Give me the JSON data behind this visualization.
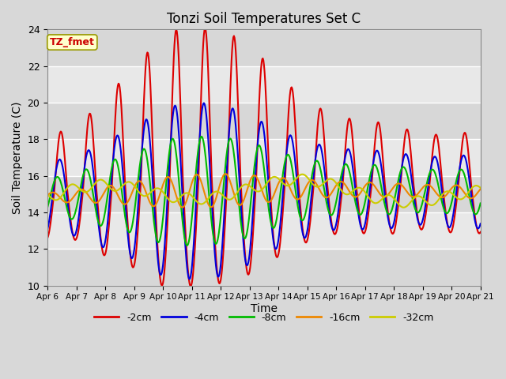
{
  "title": "Tonzi Soil Temperatures Set C",
  "xlabel": "Time",
  "ylabel": "Soil Temperature (C)",
  "ylim": [
    10,
    24
  ],
  "annotation": "TZ_fmet",
  "annotation_color": "#cc0000",
  "annotation_bg": "#ffffcc",
  "plot_bg": "#e8e8e8",
  "alt_band_color": "#d0d0d0",
  "grid_color": "#ffffff",
  "series": [
    {
      "label": "-2cm",
      "color": "#dd0000",
      "depth": 2
    },
    {
      "label": "-4cm",
      "color": "#0000dd",
      "depth": 4
    },
    {
      "label": "-8cm",
      "color": "#00bb00",
      "depth": 8
    },
    {
      "label": "-16cm",
      "color": "#ee8800",
      "depth": 16
    },
    {
      "label": "-32cm",
      "color": "#cccc00",
      "depth": 32
    }
  ],
  "start_day": 6,
  "n_days": 15,
  "tick_labels": [
    "Apr 6",
    "Apr 7",
    "Apr 8",
    "Apr 9",
    "Apr 10",
    "Apr 11",
    "Apr 12",
    "Apr 13",
    "Apr 14",
    "Apr 15",
    "Apr 16",
    "Apr 17",
    "Apr 18",
    "Apr 19",
    "Apr 20",
    "Apr 21"
  ]
}
